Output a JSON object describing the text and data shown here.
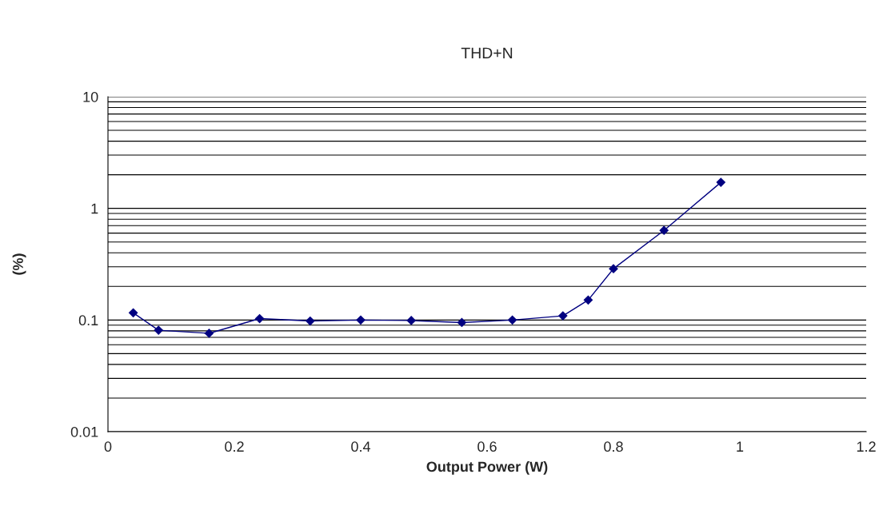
{
  "chart_data": {
    "type": "line",
    "title": "THD+N",
    "xlabel": "Output Power (W)",
    "ylabel": "(%)",
    "x": [
      0.04,
      0.08,
      0.16,
      0.24,
      0.32,
      0.4,
      0.48,
      0.56,
      0.64,
      0.72,
      0.76,
      0.8,
      0.88,
      0.97
    ],
    "series": [
      {
        "color": "#000080",
        "values": [
          0.116,
          0.081,
          0.076,
          0.103,
          0.098,
          0.1,
          0.099,
          0.095,
          0.1,
          0.109,
          0.151,
          0.288,
          0.635,
          1.71
        ]
      }
    ],
    "xlim": [
      0,
      1.2
    ],
    "xticks": [
      0,
      0.2,
      0.4,
      0.6,
      0.8,
      1,
      1.2
    ],
    "ylim": [
      0.01,
      10
    ],
    "yticks": [
      0.01,
      0.1,
      1,
      10
    ],
    "log": "y",
    "grid": "y",
    "marker": "diamond",
    "line_style": "solid"
  }
}
